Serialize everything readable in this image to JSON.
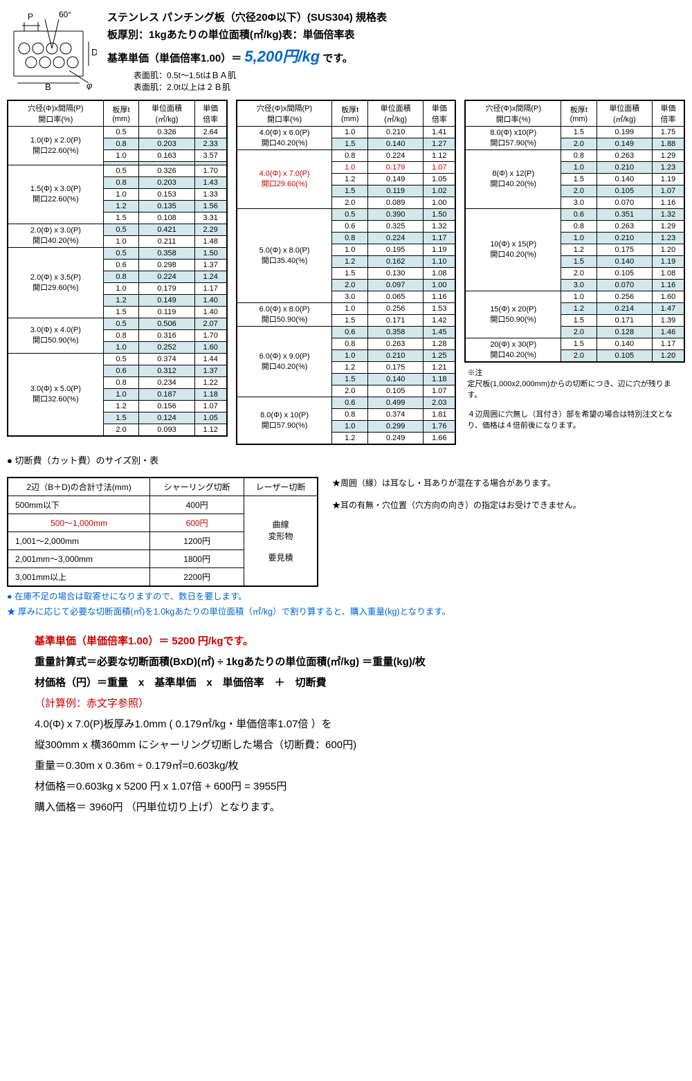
{
  "header": {
    "title1": "ステンレス パンチング板（穴径20Φ以下）(SUS304) 規格表",
    "title2": "板厚別：1kgあたりの単位面積(㎡/kg)表：単価倍率表",
    "base_label": "基準単価（単価倍率1.00）＝",
    "base_price": "5,200円/kg",
    "base_suffix": "です。",
    "surface1": "表面肌：0.5t～1.5tはＢＡ肌",
    "surface2": "表面肌：2.0t以上は２Ｂ肌",
    "diagram_labels": {
      "P": "P",
      "angle": "60°",
      "D": "D",
      "phi": "φ",
      "B": "B"
    }
  },
  "table_headers": {
    "c1a": "穴径(Φ)x間隔(P)",
    "c1b": "開口率(%)",
    "c2": "板厚t",
    "c2u": "(mm)",
    "c3": "単位面積",
    "c3u": "(㎡/kg)",
    "c4": "単価",
    "c4u": "倍率"
  },
  "tables": [
    {
      "groups": [
        {
          "spec": "1.0(Φ) x 2.0(P)",
          "open": "開口22.60(%)",
          "rows": [
            {
              "t": "0.5",
              "a": "0.326",
              "r": "2.64"
            },
            {
              "t": "0.8",
              "a": "0.203",
              "r": "2.33",
              "alt": true
            },
            {
              "t": "1.0",
              "a": "0.163",
              "r": "3.57"
            },
            {
              "t": "",
              "a": "",
              "r": "",
              "alt": true
            }
          ]
        },
        {
          "spec": "1.5(Φ) x 3.0(P)",
          "open": "開口22.60(%)",
          "rows": [
            {
              "t": "0.5",
              "a": "0.326",
              "r": "1.70"
            },
            {
              "t": "0.8",
              "a": "0.203",
              "r": "1.43",
              "alt": true
            },
            {
              "t": "1.0",
              "a": "0.153",
              "r": "1.33"
            },
            {
              "t": "1.2",
              "a": "0.135",
              "r": "1.56",
              "alt": true
            },
            {
              "t": "1.5",
              "a": "0.108",
              "r": "3.31"
            }
          ]
        },
        {
          "spec": "2.0(Φ) x 3.0(P)",
          "open": "開口40.20(%)",
          "rows": [
            {
              "t": "0.5",
              "a": "0.421",
              "r": "2.29",
              "alt": true
            },
            {
              "t": "1.0",
              "a": "0.211",
              "r": "1.48"
            }
          ]
        },
        {
          "spec": "2.0(Φ) x 3.5(P)",
          "open": "開口29.60(%)",
          "rows": [
            {
              "t": "0.5",
              "a": "0.358",
              "r": "1.50",
              "alt": true
            },
            {
              "t": "0.6",
              "a": "0.298",
              "r": "1.37"
            },
            {
              "t": "0.8",
              "a": "0.224",
              "r": "1.24",
              "alt": true
            },
            {
              "t": "1.0",
              "a": "0.179",
              "r": "1.17"
            },
            {
              "t": "1.2",
              "a": "0.149",
              "r": "1.40",
              "alt": true
            },
            {
              "t": "1.5",
              "a": "0.119",
              "r": "1.40"
            }
          ]
        },
        {
          "spec": "3.0(Φ) x 4.0(P)",
          "open": "開口50.90(%)",
          "rows": [
            {
              "t": "0.5",
              "a": "0.506",
              "r": "2.07",
              "alt": true
            },
            {
              "t": "0.8",
              "a": "0.316",
              "r": "1.70"
            },
            {
              "t": "1.0",
              "a": "0.252",
              "r": "1.60",
              "alt": true
            }
          ]
        },
        {
          "spec": "3.0(Φ) x 5.0(P)",
          "open": "開口32.60(%)",
          "rows": [
            {
              "t": "0.5",
              "a": "0.374",
              "r": "1.44"
            },
            {
              "t": "0.6",
              "a": "0.312",
              "r": "1.37",
              "alt": true
            },
            {
              "t": "0.8",
              "a": "0.234",
              "r": "1.22"
            },
            {
              "t": "1.0",
              "a": "0.187",
              "r": "1.18",
              "alt": true
            },
            {
              "t": "1.2",
              "a": "0.156",
              "r": "1.07"
            },
            {
              "t": "1.5",
              "a": "0.124",
              "r": "1.05",
              "alt": true
            },
            {
              "t": "2.0",
              "a": "0.093",
              "r": "1.12"
            }
          ]
        }
      ]
    },
    {
      "groups": [
        {
          "spec": "4.0(Φ) x 6.0(P)",
          "open": "開口40.20(%)",
          "rows": [
            {
              "t": "1.0",
              "a": "0.210",
              "r": "1.41"
            },
            {
              "t": "1.5",
              "a": "0.140",
              "r": "1.27",
              "alt": true
            }
          ]
        },
        {
          "spec": "4.0(Φ) x 7.0(P)",
          "open": "開口29.60(%)",
          "red": true,
          "rows": [
            {
              "t": "0.8",
              "a": "0.224",
              "r": "1.12"
            },
            {
              "t": "1.0",
              "a": "0.179",
              "r": "1.07",
              "red": true
            },
            {
              "t": "1.2",
              "a": "0.149",
              "r": "1.05"
            },
            {
              "t": "1.5",
              "a": "0.119",
              "r": "1.02",
              "alt": true
            },
            {
              "t": "2.0",
              "a": "0.089",
              "r": "1.00"
            }
          ]
        },
        {
          "spec": "5.0(Φ) x 8.0(P)",
          "open": "開口35.40(%)",
          "rows": [
            {
              "t": "0.5",
              "a": "0.390",
              "r": "1.50",
              "alt": true
            },
            {
              "t": "0.6",
              "a": "0.325",
              "r": "1.32"
            },
            {
              "t": "0.8",
              "a": "0.224",
              "r": "1.17",
              "alt": true
            },
            {
              "t": "1.0",
              "a": "0.195",
              "r": "1.19"
            },
            {
              "t": "1.2",
              "a": "0.162",
              "r": "1.10",
              "alt": true
            },
            {
              "t": "1.5",
              "a": "0.130",
              "r": "1.08"
            },
            {
              "t": "2.0",
              "a": "0.097",
              "r": "1.00",
              "alt": true
            },
            {
              "t": "3.0",
              "a": "0.065",
              "r": "1.16"
            }
          ]
        },
        {
          "spec": "6.0(Φ) x 8.0(P)",
          "open": "開口50.90(%)",
          "rows": [
            {
              "t": "1.0",
              "a": "0.256",
              "r": "1.53"
            },
            {
              "t": "1.5",
              "a": "0.171",
              "r": "1.42"
            }
          ]
        },
        {
          "spec": "6.0(Φ) x 9.0(P)",
          "open": "開口40.20(%)",
          "rows": [
            {
              "t": "0.6",
              "a": "0.358",
              "r": "1.45",
              "alt": true
            },
            {
              "t": "0.8",
              "a": "0.263",
              "r": "1.28"
            },
            {
              "t": "1.0",
              "a": "0.210",
              "r": "1.25",
              "alt": true
            },
            {
              "t": "1.2",
              "a": "0.175",
              "r": "1.21"
            },
            {
              "t": "1.5",
              "a": "0.140",
              "r": "1.18",
              "alt": true
            },
            {
              "t": "2.0",
              "a": "0.105",
              "r": "1.07"
            }
          ]
        },
        {
          "spec": "8.0(Φ) x 10(P)",
          "open": "開口57.90(%)",
          "rows": [
            {
              "t": "0.6",
              "a": "0.499",
              "r": "2.03",
              "alt": true
            },
            {
              "t": "0.8",
              "a": "0.374",
              "r": "1.81"
            },
            {
              "t": "1.0",
              "a": "0.299",
              "r": "1.76",
              "alt": true
            },
            {
              "t": "1.2",
              "a": "0.249",
              "r": "1.66"
            }
          ]
        }
      ]
    },
    {
      "groups": [
        {
          "spec": "8.0(Φ) x10(P)",
          "open": "開口57.90(%)",
          "rows": [
            {
              "t": "1.5",
              "a": "0.199",
              "r": "1.75"
            },
            {
              "t": "2.0",
              "a": "0.149",
              "r": "1.88",
              "alt": true
            }
          ]
        },
        {
          "spec": "8(Φ) x 12(P)",
          "open": "開口40.20(%)",
          "rows": [
            {
              "t": "0.8",
              "a": "0.263",
              "r": "1.29"
            },
            {
              "t": "1.0",
              "a": "0.210",
              "r": "1.23",
              "alt": true
            },
            {
              "t": "1.5",
              "a": "0.140",
              "r": "1.19"
            },
            {
              "t": "2.0",
              "a": "0.105",
              "r": "1.07",
              "alt": true
            },
            {
              "t": "3.0",
              "a": "0.070",
              "r": "1.16"
            }
          ]
        },
        {
          "spec": "10(Φ) x 15(P)",
          "open": "開口40.20(%)",
          "rows": [
            {
              "t": "0.6",
              "a": "0.351",
              "r": "1.32",
              "alt": true
            },
            {
              "t": "0.8",
              "a": "0.263",
              "r": "1.29"
            },
            {
              "t": "1.0",
              "a": "0.210",
              "r": "1.23",
              "alt": true
            },
            {
              "t": "1.2",
              "a": "0.175",
              "r": "1.20"
            },
            {
              "t": "1.5",
              "a": "0.140",
              "r": "1.19",
              "alt": true
            },
            {
              "t": "2.0",
              "a": "0.105",
              "r": "1.08"
            },
            {
              "t": "3.0",
              "a": "0.070",
              "r": "1.16",
              "alt": true
            }
          ]
        },
        {
          "spec": "15(Φ) x 20(P)",
          "open": "開口50.90(%)",
          "rows": [
            {
              "t": "1.0",
              "a": "0.256",
              "r": "1.60"
            },
            {
              "t": "1.2",
              "a": "0.214",
              "r": "1.47",
              "alt": true
            },
            {
              "t": "1.5",
              "a": "0.171",
              "r": "1.39"
            },
            {
              "t": "2.0",
              "a": "0.128",
              "r": "1.46",
              "alt": true
            }
          ]
        },
        {
          "spec": "20(Φ) x 30(P)",
          "open": "開口40.20(%)",
          "rows": [
            {
              "t": "1.5",
              "a": "0.140",
              "r": "1.17"
            },
            {
              "t": "2.0",
              "a": "0.105",
              "r": "1.20",
              "alt": true
            }
          ]
        }
      ],
      "note": {
        "title": "※注",
        "l1": "定尺板(1,000x2,000mm)からの切断につき、辺に穴が残ります。",
        "l2": "４辺周囲に穴無し（耳付き）部を希望の場合は特別注文となり、価格は４倍前後になります。"
      }
    }
  ],
  "cut": {
    "title": "● 切断費（カット費）のサイズ別・表",
    "h1": "2辺（B＋D)の合計寸法(mm)",
    "h2": "シャーリング切断",
    "h3": "レーザー切断",
    "laser": "曲線\n変形物\n\n要見積",
    "rows": [
      {
        "s": "500mm以下",
        "p": "400円"
      },
      {
        "s": "500～1,000mm",
        "p": "600円",
        "red": true
      },
      {
        "s": "1,001～2,000mm",
        "p": "1200円"
      },
      {
        "s": "2,001mm～3,000mm",
        "p": "1800円"
      },
      {
        "s": "3,001mm以上",
        "p": "2200円"
      }
    ],
    "star1": "★周囲（縁）は耳なし・耳ありが混在する場合があります。",
    "star2": "★耳の有無・穴位置（穴方向の向き）の指定はお受けできません。"
  },
  "notes": {
    "blue1": "● 在庫不足の場合は取寄せになりますので、数日を要します。",
    "blue2": "★ 厚みに応じて必要な切断面積(㎡)を1.0kgあたりの単位面積（㎡/kg）で割り算すると、購入重量(kg)となります。"
  },
  "calc": {
    "l1": "基準単価（単価倍率1.00）＝ 5200 円/kgです。",
    "l2": "重量計算式＝必要な切断面積(BxD)(㎡) ÷ 1kgあたりの単位面積(㎡/kg) ＝重量(kg)/枚",
    "l3": "材価格（円）＝重量　x　基準単価　x　単価倍率　＋　切断費",
    "l4": "（計算例：赤文字参照）",
    "l5": "4.0(Φ) x 7.0(P)板厚み1.0mm ( 0.179㎡/kg・単価倍率1.07倍 ）を",
    "l6": "縦300mm x 横360mm にシャーリング切断した場合（切断費：600円)",
    "l7": "重量＝0.30m x 0.36m ÷ 0.179㎡=0.603kg/枚",
    "l8": "材価格＝0.603kg x 5200 円 x 1.07倍 + 600円 = 3955円",
    "l9": "購入価格＝ 3960円 （円単位切り上げ）となります。"
  }
}
